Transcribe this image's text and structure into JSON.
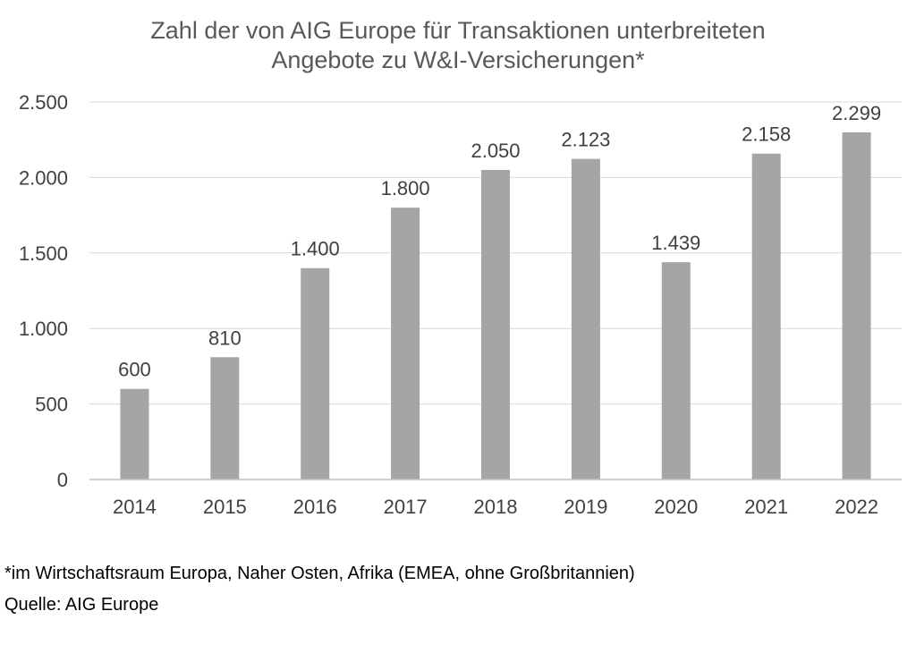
{
  "chart_data": {
    "type": "bar",
    "title_lines": [
      "Zahl der von AIG Europe für Transaktionen unterbreiteten",
      "Angebote zu W&I-Versicherungen*"
    ],
    "categories": [
      "2014",
      "2015",
      "2016",
      "2017",
      "2018",
      "2019",
      "2020",
      "2021",
      "2022"
    ],
    "values": [
      600,
      810,
      1400,
      1800,
      2050,
      2123,
      1439,
      2158,
      2299
    ],
    "data_labels": [
      "600",
      "810",
      "1.400",
      "1.800",
      "2.050",
      "2.123",
      "1.439",
      "2.158",
      "2.299"
    ],
    "y_ticks": [
      0,
      500,
      1000,
      1500,
      2000,
      2500
    ],
    "y_tick_labels": [
      "0",
      "500",
      "1.000",
      "1.500",
      "2.000",
      "2.500"
    ],
    "ylim": [
      0,
      2500
    ],
    "grid": true,
    "legend": "none",
    "xlabel": "",
    "ylabel": "",
    "colors": {
      "bar": "#a5a5a5",
      "grid": "#d9d9d9",
      "axis": "#bfbfbf",
      "text": "#404040",
      "title": "#595959"
    }
  },
  "footnotes": {
    "note": "*im Wirtschaftsraum Europa, Naher Osten, Afrika (EMEA, ohne Großbritannien)",
    "source": "Quelle: AIG Europe"
  }
}
